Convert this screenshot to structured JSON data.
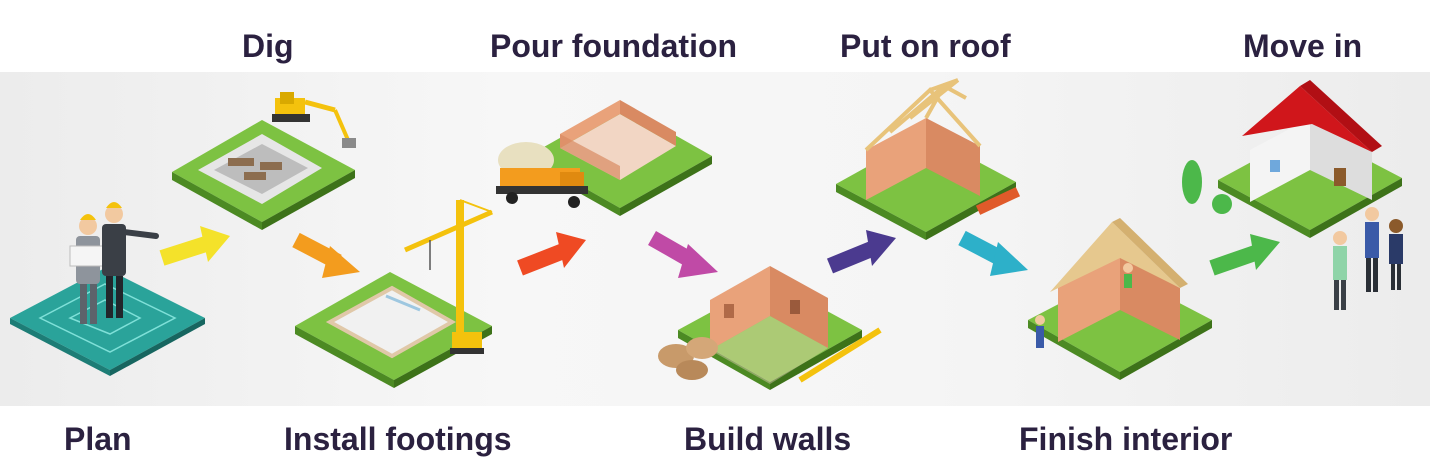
{
  "steps": {
    "plan": "Plan",
    "dig": "Dig",
    "install_footings": "Install footings",
    "pour_foundation": "Pour foundation",
    "build_walls": "Build walls",
    "put_on_roof": "Put on roof",
    "finish_interior": "Finish interior",
    "move_in": "Move in"
  },
  "colors": {
    "heading_text": "#2b2140",
    "grass": "#7dc242",
    "brick": "#e9a27a",
    "roof": "#d0161b",
    "arrow_1": "#f4e22a",
    "arrow_2": "#f39c1e",
    "arrow_3": "#ef4a23",
    "arrow_4": "#c04aa6",
    "arrow_5": "#4b3a8f",
    "arrow_6": "#2db0c9",
    "arrow_7": "#4cb84a"
  },
  "icons": [
    "architects-plan-icon",
    "excavator-icon",
    "crane-icon",
    "cement-mixer-icon",
    "brick-walls-icon",
    "roof-frame-icon",
    "house-icon",
    "people-icon"
  ]
}
